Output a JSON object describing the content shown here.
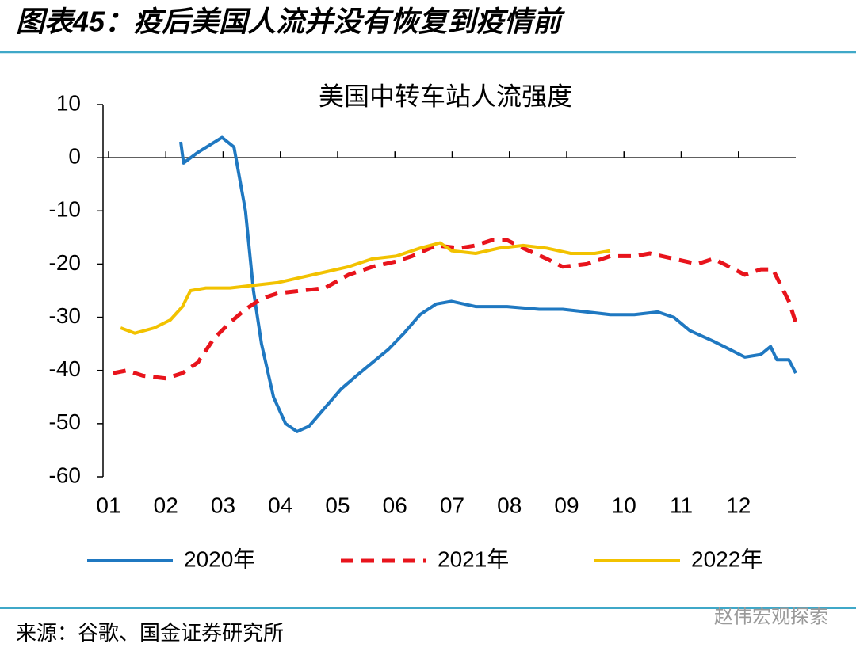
{
  "page": {
    "title": "图表45：疫后美国人流并没有恢复到疫情前",
    "source": "来源：谷歌、国金证券研究所",
    "watermark": "赵伟宏观探索"
  },
  "chart_data": {
    "type": "line",
    "title": "美国中转车站人流强度",
    "xlim": [
      1,
      13
    ],
    "xticks": [
      {
        "value": 1,
        "label": "01"
      },
      {
        "value": 2,
        "label": "02"
      },
      {
        "value": 3,
        "label": "03"
      },
      {
        "value": 4,
        "label": "04"
      },
      {
        "value": 5,
        "label": "05"
      },
      {
        "value": 6,
        "label": "06"
      },
      {
        "value": 7,
        "label": "07"
      },
      {
        "value": 8,
        "label": "08"
      },
      {
        "value": 9,
        "label": "09"
      },
      {
        "value": 10,
        "label": "10"
      },
      {
        "value": 11,
        "label": "11"
      },
      {
        "value": 12,
        "label": "12"
      }
    ],
    "ylim": [
      -60,
      10
    ],
    "yticks": [
      10,
      0,
      -10,
      -20,
      -30,
      -40,
      -50,
      -60
    ],
    "legend": "bottom",
    "series": [
      {
        "name": "2020年",
        "color": "#1f78c1",
        "dashed": false,
        "x": [
          2.26,
          2.31,
          2.56,
          2.98,
          3.19,
          3.39,
          3.53,
          3.67,
          3.88,
          4.09,
          4.29,
          4.5,
          4.78,
          5.06,
          5.33,
          5.61,
          5.89,
          6.16,
          6.44,
          6.72,
          6.99,
          7.41,
          7.96,
          8.52,
          8.93,
          9.35,
          9.76,
          10.18,
          10.59,
          10.87,
          11.15,
          11.56,
          11.84,
          12.11,
          12.39,
          12.56,
          12.67,
          12.88,
          13
        ],
        "values": [
          3,
          -1,
          1,
          3.8,
          2,
          -10,
          -25,
          -35,
          -45,
          -50,
          -51.5,
          -50.5,
          -47,
          -43.5,
          -41,
          -38.5,
          -36,
          -33,
          -29.5,
          -27.5,
          -27,
          -28,
          -28,
          -28.5,
          -28.5,
          -29,
          -29.5,
          -29.5,
          -29,
          -30,
          -32.5,
          -34.5,
          -36,
          -37.5,
          -37,
          -35.5,
          -38,
          -38,
          -40.5
        ]
      },
      {
        "name": "2021年",
        "color": "#e8141c",
        "dashed": true,
        "x": [
          1.08,
          1.32,
          1.6,
          2.01,
          2.29,
          2.56,
          2.84,
          3.12,
          3.39,
          3.67,
          3.95,
          4.36,
          4.78,
          5.19,
          5.61,
          6.02,
          6.3,
          6.72,
          7.13,
          7.41,
          7.69,
          7.96,
          8.24,
          8.65,
          8.93,
          9.35,
          9.76,
          10.18,
          10.45,
          10.87,
          11.28,
          11.56,
          11.84,
          12.11,
          12.39,
          12.6,
          12.74,
          12.88,
          13
        ],
        "values": [
          -40.5,
          -40,
          -41,
          -41.5,
          -40.5,
          -38.5,
          -34,
          -31,
          -28.5,
          -26.5,
          -25.5,
          -25,
          -24.5,
          -22,
          -20.5,
          -19.5,
          -18.5,
          -16.5,
          -17,
          -16.5,
          -15.5,
          -15.5,
          -17,
          -19,
          -20.5,
          -20,
          -18.5,
          -18.5,
          -18,
          -19,
          -20,
          -19,
          -20.5,
          -22,
          -21,
          -21,
          -24,
          -27,
          -31
        ]
      },
      {
        "name": "2022年",
        "color": "#f2c200",
        "dashed": false,
        "x": [
          1.21,
          1.46,
          1.8,
          2.08,
          2.29,
          2.43,
          2.7,
          3.12,
          3.53,
          3.95,
          4.36,
          4.78,
          5.19,
          5.61,
          6.02,
          6.44,
          6.79,
          6.99,
          7.41,
          7.82,
          8.24,
          8.65,
          9.07,
          9.49,
          9.76
        ],
        "values": [
          -32,
          -33,
          -32,
          -30.5,
          -28,
          -25,
          -24.5,
          -24.5,
          -24,
          -23.5,
          -22.5,
          -21.5,
          -20.5,
          -19,
          -18.5,
          -17,
          -16,
          -17.5,
          -18,
          -17,
          -16.5,
          -17,
          -18,
          -18,
          -17.5
        ]
      }
    ]
  }
}
